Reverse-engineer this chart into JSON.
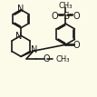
{
  "bg_color": "#fcfbea",
  "line_color": "#1a1a1a",
  "lw": 1.2,
  "font_size": 6.5
}
